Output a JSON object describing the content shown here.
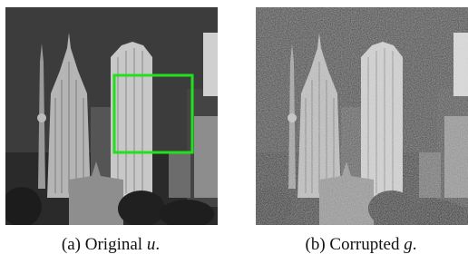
{
  "figures": [
    {
      "label": "(a) Original",
      "symbol": "u",
      "end": "."
    },
    {
      "label": "(b) Corrupted",
      "symbol": "g",
      "end": "."
    }
  ]
}
